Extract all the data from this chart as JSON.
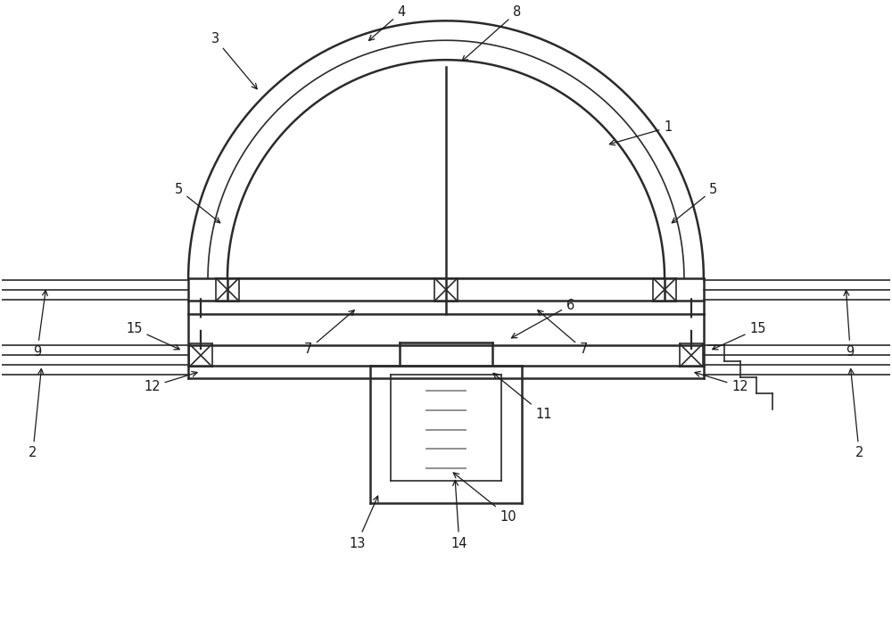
{
  "bg_color": "#ffffff",
  "line_color": "#2a2a2a",
  "fig_width": 10.0,
  "fig_height": 7.22,
  "dpi": 100
}
